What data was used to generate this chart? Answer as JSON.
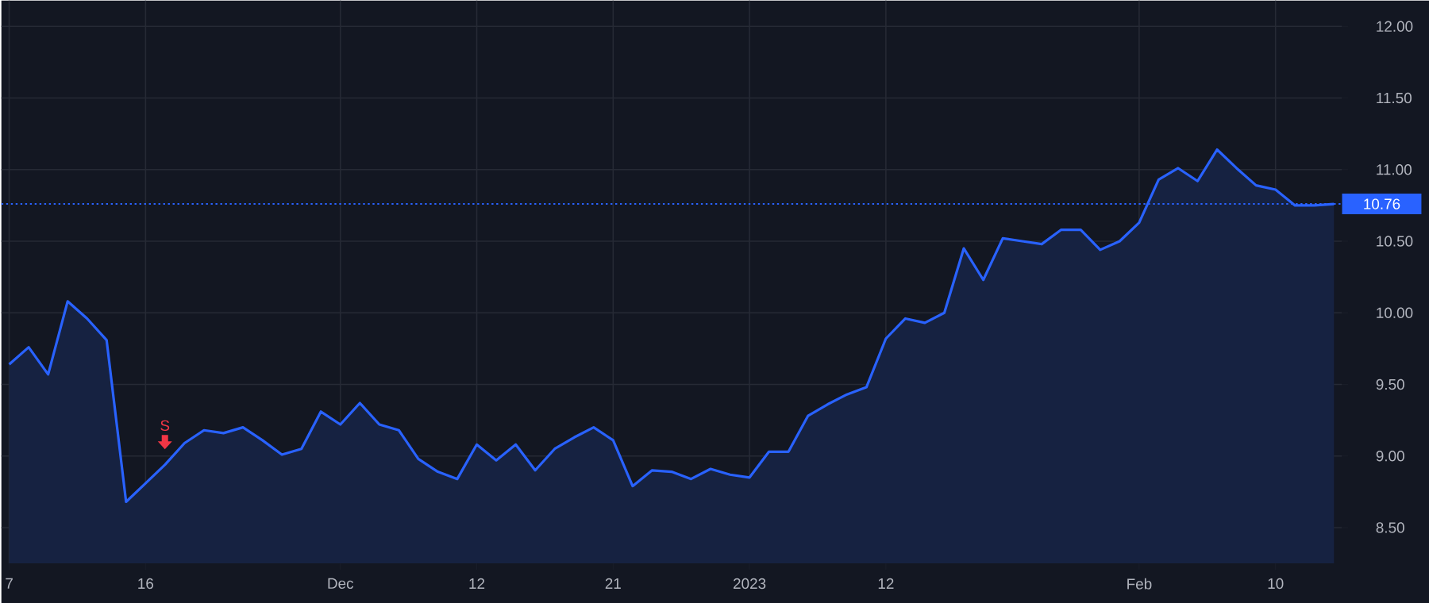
{
  "chart_data": {
    "type": "area",
    "categories": [
      "7",
      null,
      null,
      null,
      null,
      null,
      null,
      "16",
      null,
      null,
      null,
      null,
      null,
      null,
      null,
      null,
      null,
      "Dec",
      null,
      null,
      null,
      null,
      null,
      null,
      "12",
      null,
      null,
      null,
      null,
      null,
      null,
      "21",
      null,
      null,
      null,
      null,
      null,
      null,
      "2023",
      null,
      null,
      null,
      null,
      null,
      null,
      "12",
      null,
      null,
      null,
      null,
      null,
      null,
      null,
      null,
      null,
      null,
      null,
      null,
      "Feb",
      null,
      null,
      null,
      null,
      null,
      null,
      "10",
      null,
      null,
      null
    ],
    "series": [
      {
        "color": "#2962ff",
        "values": [
          9.64,
          9.76,
          9.57,
          10.08,
          9.96,
          9.81,
          8.68,
          8.81,
          8.94,
          9.09,
          9.18,
          9.16,
          9.2,
          9.11,
          9.01,
          9.05,
          9.31,
          9.22,
          9.37,
          9.22,
          9.18,
          8.98,
          8.89,
          8.84,
          9.08,
          8.97,
          9.08,
          8.9,
          9.05,
          9.13,
          9.2,
          9.11,
          8.79,
          8.9,
          8.89,
          8.84,
          8.91,
          8.87,
          8.85,
          9.03,
          9.03,
          9.28,
          9.36,
          9.43,
          9.48,
          9.82,
          9.96,
          9.93,
          10.0,
          10.45,
          10.23,
          10.52,
          10.5,
          10.48,
          10.58,
          10.58,
          10.44,
          10.5,
          10.63,
          10.93,
          11.01,
          10.92,
          11.14,
          11.01,
          10.89,
          10.86,
          10.75,
          10.75,
          10.76
        ]
      }
    ],
    "ylim": [
      8.25,
      12.18
    ],
    "yticks": [
      {
        "value": 8.5,
        "label": "8.50"
      },
      {
        "value": 9.0,
        "label": "9.00"
      },
      {
        "value": 9.5,
        "label": "9.50"
      },
      {
        "value": 10.0,
        "label": "10.00"
      },
      {
        "value": 10.5,
        "label": "10.50"
      },
      {
        "value": 11.0,
        "label": "11.00"
      },
      {
        "value": 11.5,
        "label": "11.50"
      },
      {
        "value": 12.0,
        "label": "12.00"
      }
    ],
    "grid": true,
    "ref_lines": [
      {
        "axis": "y",
        "value": 10.76,
        "label": "10.76",
        "color": "#2962ff",
        "line_style": "dotted"
      }
    ],
    "annotations": [
      "S"
    ]
  }
}
